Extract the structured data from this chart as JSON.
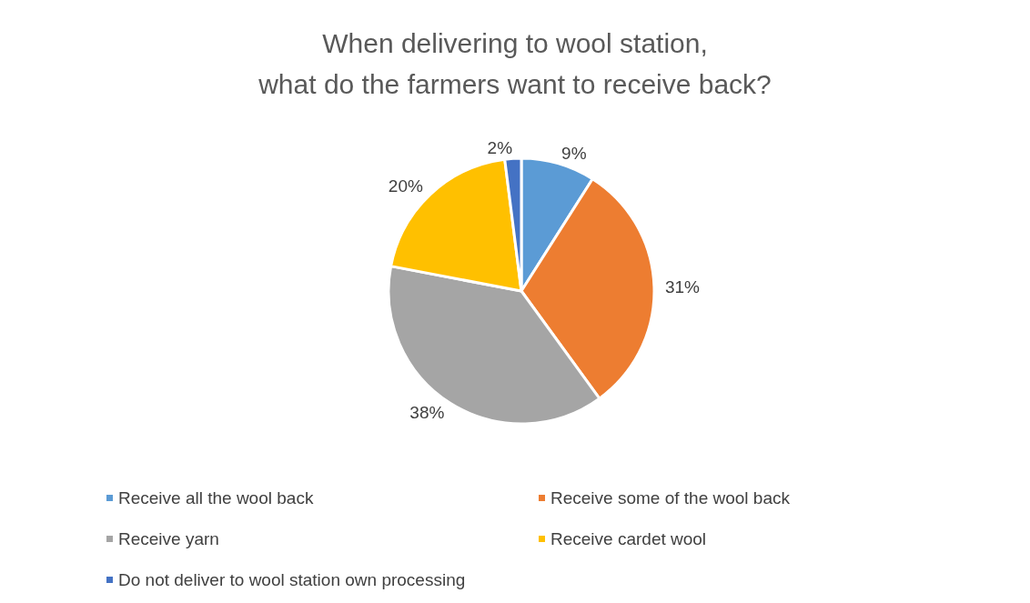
{
  "chart_data": {
    "type": "pie",
    "title": "When delivering to wool station,\nwhat do the farmers want to receive back?",
    "categories": [
      "Receive all the wool back",
      "Receive some of the wool back",
      "Receive yarn",
      "Receive cardet wool",
      "Do not deliver to wool station own processing"
    ],
    "values": [
      9,
      31,
      38,
      20,
      2
    ],
    "colors": [
      "#5b9bd5",
      "#ed7d31",
      "#a5a5a5",
      "#ffc000",
      "#4472c4"
    ],
    "value_labels": [
      "9%",
      "31%",
      "38%",
      "20%",
      "2%"
    ],
    "legend": "bottom"
  }
}
